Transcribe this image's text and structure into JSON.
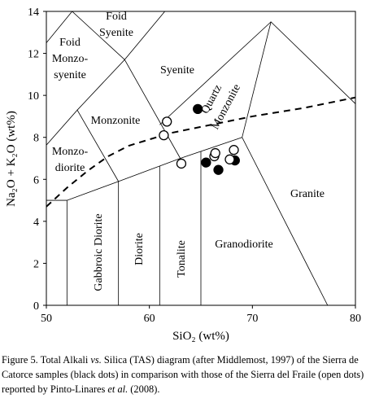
{
  "chart_data": {
    "type": "scatter",
    "x_label": "SiO₂ (wt%)",
    "y_label": "Na₂O + K₂O  (wt%)",
    "xlim": [
      50,
      80
    ],
    "xticks": [
      50,
      60,
      70,
      80
    ],
    "ylim": [
      0,
      14
    ],
    "yticks": [
      0,
      2,
      4,
      6,
      8,
      10,
      12,
      14
    ],
    "series": [
      {
        "color": "#000000",
        "fill": "#000000",
        "x": [
          64.7,
          65.5,
          66.7,
          68.3
        ],
        "values": [
          9.35,
          6.8,
          6.45,
          6.9
        ]
      },
      {
        "color": "#000000",
        "fill": "#ffffff",
        "x": [
          61.7,
          61.4,
          63.1,
          66.3,
          66.4,
          68.2,
          67.8
        ],
        "values": [
          8.75,
          8.1,
          6.75,
          7.1,
          7.25,
          7.4,
          6.95
        ]
      }
    ],
    "dividing_line": {
      "color": "#000000",
      "x": [
        50,
        52,
        54,
        56,
        58,
        60,
        62,
        65,
        70,
        75,
        80
      ],
      "values": [
        4.7,
        5.6,
        6.4,
        7.1,
        7.6,
        7.9,
        8.2,
        8.5,
        9.0,
        9.4,
        9.9
      ]
    },
    "boundaries": [
      {
        "x": [
          50,
          52,
          57,
          63,
          69,
          77.3
        ],
        "values": [
          5,
          5,
          5.9,
          7,
          8,
          0
        ]
      },
      {
        "x": [
          52,
          52
        ],
        "values": [
          0,
          5
        ]
      },
      {
        "x": [
          57,
          57
        ],
        "values": [
          0,
          5.9
        ]
      },
      {
        "x": [
          61,
          61
        ],
        "values": [
          0,
          6.63
        ]
      },
      {
        "x": [
          65,
          65
        ],
        "values": [
          0,
          7.33
        ]
      },
      {
        "x": [
          50,
          53,
          57
        ],
        "values": [
          7.63,
          9.3,
          5.9
        ]
      },
      {
        "x": [
          53,
          57.6,
          63
        ],
        "values": [
          9.3,
          11.7,
          7
        ]
      },
      {
        "x": [
          50,
          52.5
        ],
        "values": [
          12.5,
          14
        ]
      },
      {
        "x": [
          52.5,
          57.6,
          61.5
        ],
        "values": [
          14,
          11.7,
          14
        ]
      },
      {
        "x": [
          61,
          71.8
        ],
        "values": [
          8.6,
          13.5
        ]
      },
      {
        "x": [
          69,
          71.8,
          80
        ],
        "values": [
          8,
          13.5,
          9.6
        ]
      }
    ],
    "field_labels": [
      [
        "Foid",
        "Syenite"
      ],
      [
        "Foid",
        "Monzo-",
        "syenite"
      ],
      [
        "Syenite"
      ],
      [
        "Quartz",
        "Monzonite"
      ],
      [
        "Monzonite"
      ],
      [
        "Monzo-",
        "diorite"
      ],
      [
        "Gabbroic Diorite"
      ],
      [
        "Diorite"
      ],
      [
        "Tonalite"
      ],
      [
        "Granodiorite"
      ],
      [
        "Granite"
      ]
    ],
    "caption": [
      "Figure 5. Total Alkali ",
      "vs.",
      " Silica (TAS) diagram (after Middlemost, 1997) of the Sierra de Catorce samples (black dots) in comparison with those of the Sierra del Fraile (open dots) reported by Pinto-Linares ",
      "et al.",
      " (2008)."
    ]
  }
}
